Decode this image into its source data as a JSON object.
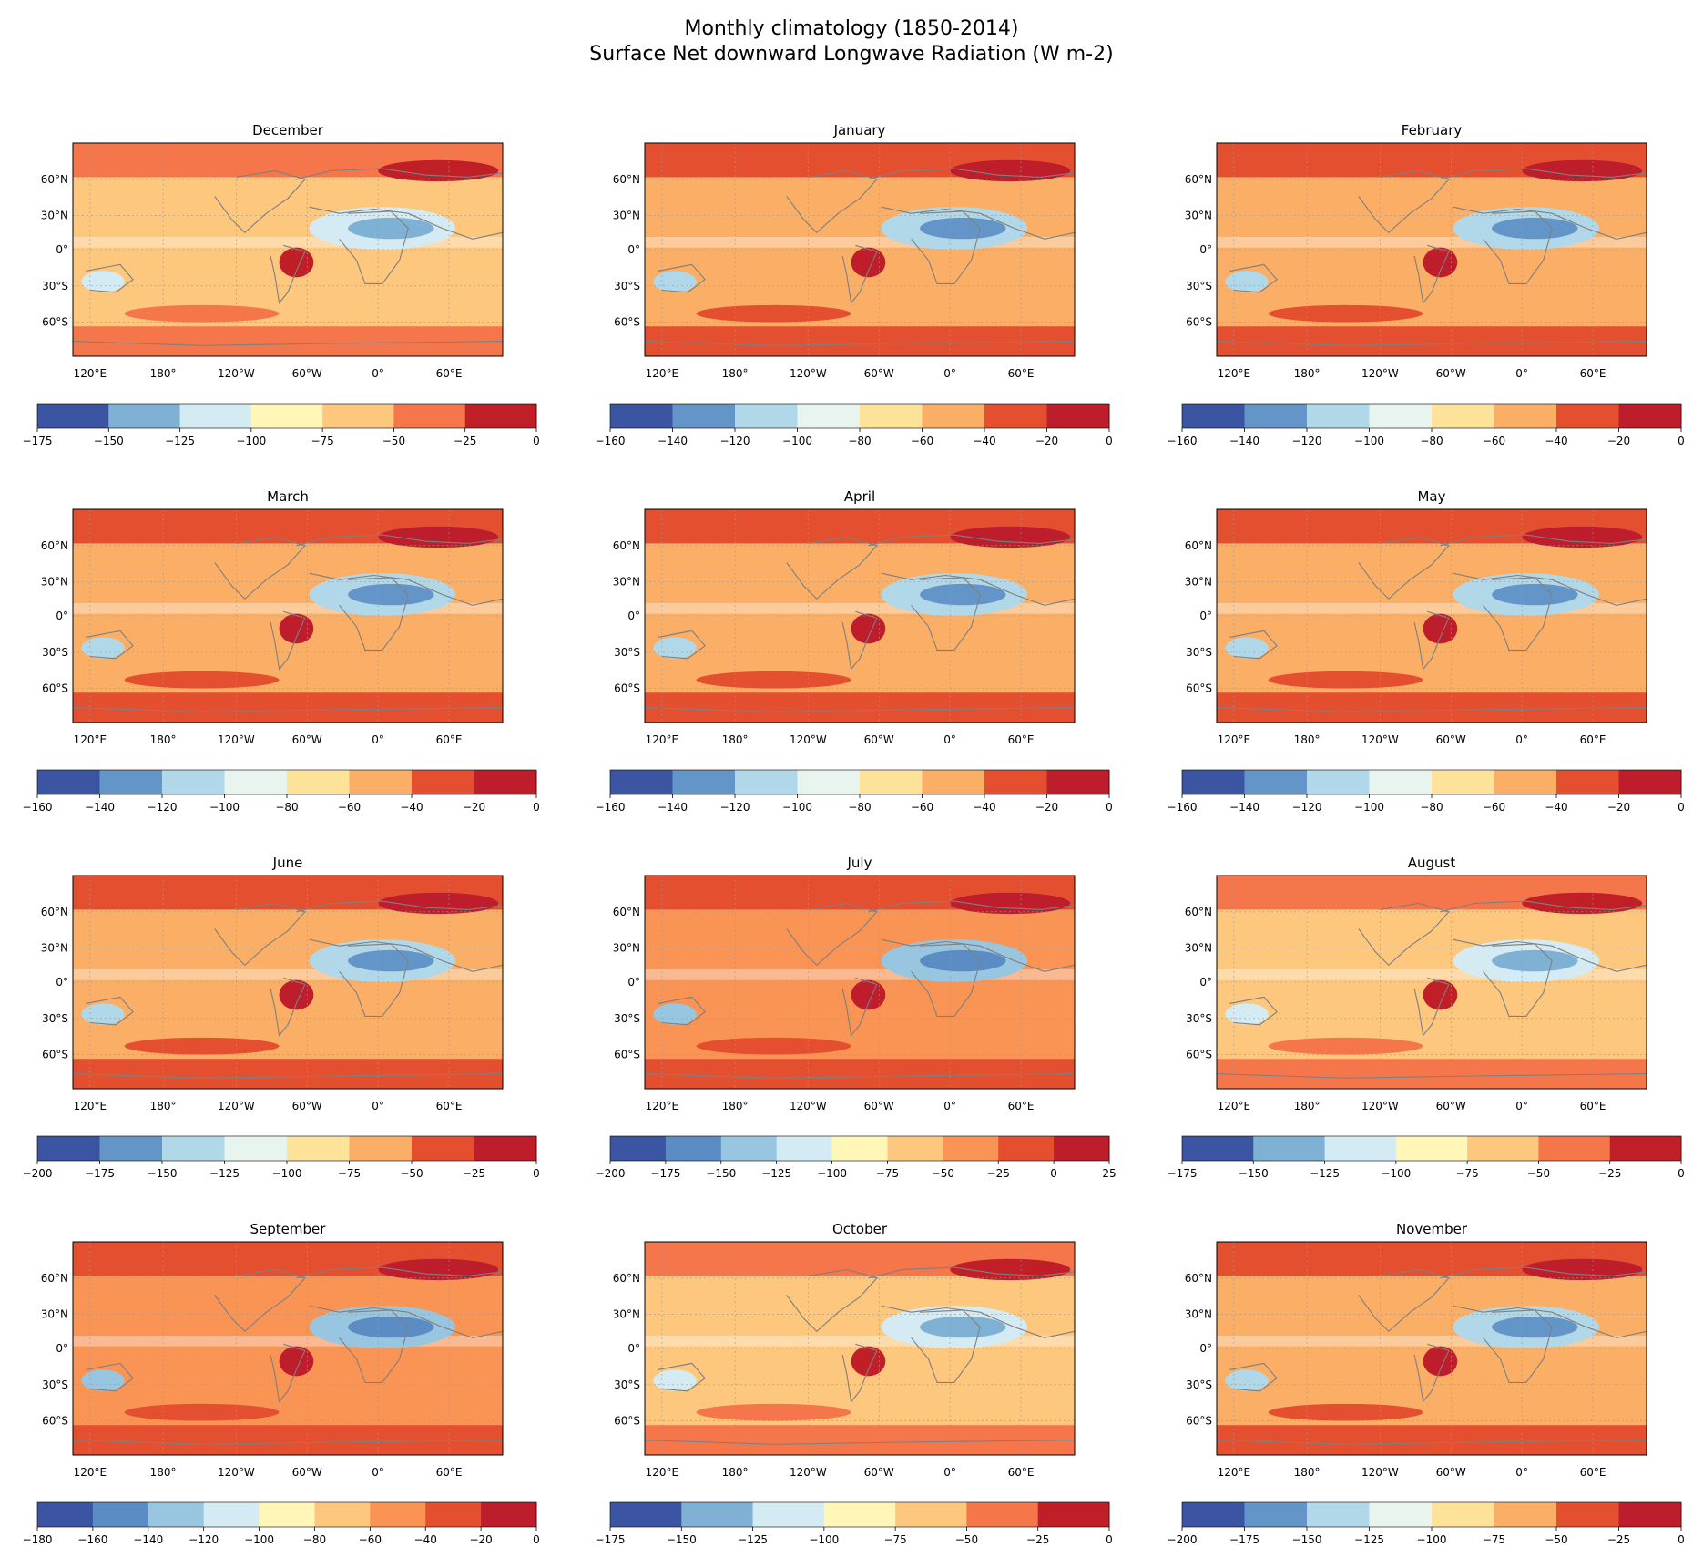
{
  "figure": {
    "title_line1": "Monthly climatology (1850-2014)",
    "title_line2": "Surface Net downward Longwave Radiation (W m-2)"
  },
  "colors": {
    "land_outline": "#7f7f7f",
    "gridline": "#9a9a9a",
    "frame": "#000000"
  },
  "chart_data": [
    {
      "type": "heatmap",
      "title": "December",
      "map": {
        "lat_ticks": [
          "60°N",
          "30°N",
          "0°",
          "30°S",
          "60°S"
        ],
        "lon_ticks": [
          "120°E",
          "180°",
          "120°W",
          "60°W",
          "0°",
          "60°E"
        ]
      },
      "colorbar": {
        "ticks": [
          -175,
          -150,
          -125,
          -100,
          -75,
          -50,
          -25,
          0
        ],
        "levels": [
          -175,
          -150,
          -125,
          -100,
          -75,
          -50,
          -25,
          0
        ],
        "colors": [
          "#3b55a3",
          "#7fb1d5",
          "#d4ebf3",
          "#fff6b8",
          "#fdc77d",
          "#f5764b",
          "#c11f27"
        ]
      }
    },
    {
      "type": "heatmap",
      "title": "January",
      "map": {
        "lat_ticks": [
          "60°N",
          "30°N",
          "0°",
          "30°S",
          "60°S"
        ],
        "lon_ticks": [
          "120°E",
          "180°",
          "120°W",
          "60°W",
          "0°",
          "60°E"
        ]
      },
      "colorbar": {
        "ticks": [
          -160,
          -140,
          -120,
          -100,
          -80,
          -60,
          -40,
          -20,
          0
        ],
        "levels": [
          -160,
          -140,
          -120,
          -100,
          -80,
          -60,
          -40,
          -20,
          0
        ],
        "colors": [
          "#3b55a3",
          "#6495c8",
          "#b1d8e9",
          "#e8f4ee",
          "#fde29a",
          "#fbaf66",
          "#e4502f",
          "#be1d2b"
        ]
      }
    },
    {
      "type": "heatmap",
      "title": "February",
      "map": {
        "lat_ticks": [
          "60°N",
          "30°N",
          "0°",
          "30°S",
          "60°S"
        ],
        "lon_ticks": [
          "120°E",
          "180°",
          "120°W",
          "60°W",
          "0°",
          "60°E"
        ]
      },
      "colorbar": {
        "ticks": [
          -160,
          -140,
          -120,
          -100,
          -80,
          -60,
          -40,
          -20,
          0
        ],
        "levels": [
          -160,
          -140,
          -120,
          -100,
          -80,
          -60,
          -40,
          -20,
          0
        ],
        "colors": [
          "#3b55a3",
          "#6495c8",
          "#b1d8e9",
          "#e8f4ee",
          "#fde29a",
          "#fbaf66",
          "#e4502f",
          "#be1d2b"
        ]
      }
    },
    {
      "type": "heatmap",
      "title": "March",
      "map": {
        "lat_ticks": [
          "60°N",
          "30°N",
          "0°",
          "30°S",
          "60°S"
        ],
        "lon_ticks": [
          "120°E",
          "180°",
          "120°W",
          "60°W",
          "0°",
          "60°E"
        ]
      },
      "colorbar": {
        "ticks": [
          -160,
          -140,
          -120,
          -100,
          -80,
          -60,
          -40,
          -20,
          0
        ],
        "levels": [
          -160,
          -140,
          -120,
          -100,
          -80,
          -60,
          -40,
          -20,
          0
        ],
        "colors": [
          "#3b55a3",
          "#6495c8",
          "#b1d8e9",
          "#e8f4ee",
          "#fde29a",
          "#fbaf66",
          "#e4502f",
          "#be1d2b"
        ]
      }
    },
    {
      "type": "heatmap",
      "title": "April",
      "map": {
        "lat_ticks": [
          "60°N",
          "30°N",
          "0°",
          "30°S",
          "60°S"
        ],
        "lon_ticks": [
          "120°E",
          "180°",
          "120°W",
          "60°W",
          "0°",
          "60°E"
        ]
      },
      "colorbar": {
        "ticks": [
          -160,
          -140,
          -120,
          -100,
          -80,
          -60,
          -40,
          -20,
          0
        ],
        "levels": [
          -160,
          -140,
          -120,
          -100,
          -80,
          -60,
          -40,
          -20,
          0
        ],
        "colors": [
          "#3b55a3",
          "#6495c8",
          "#b1d8e9",
          "#e8f4ee",
          "#fde29a",
          "#fbaf66",
          "#e4502f",
          "#be1d2b"
        ]
      }
    },
    {
      "type": "heatmap",
      "title": "May",
      "map": {
        "lat_ticks": [
          "60°N",
          "30°N",
          "0°",
          "30°S",
          "60°S"
        ],
        "lon_ticks": [
          "120°E",
          "180°",
          "120°W",
          "60°W",
          "0°",
          "60°E"
        ]
      },
      "colorbar": {
        "ticks": [
          -160,
          -140,
          -120,
          -100,
          -80,
          -60,
          -40,
          -20,
          0
        ],
        "levels": [
          -160,
          -140,
          -120,
          -100,
          -80,
          -60,
          -40,
          -20,
          0
        ],
        "colors": [
          "#3b55a3",
          "#6495c8",
          "#b1d8e9",
          "#e8f4ee",
          "#fde29a",
          "#fbaf66",
          "#e4502f",
          "#be1d2b"
        ]
      }
    },
    {
      "type": "heatmap",
      "title": "June",
      "map": {
        "lat_ticks": [
          "60°N",
          "30°N",
          "0°",
          "30°S",
          "60°S"
        ],
        "lon_ticks": [
          "120°E",
          "180°",
          "120°W",
          "60°W",
          "0°",
          "60°E"
        ]
      },
      "colorbar": {
        "ticks": [
          -200,
          -175,
          -150,
          -125,
          -100,
          -75,
          -50,
          -25,
          0
        ],
        "levels": [
          -200,
          -175,
          -150,
          -125,
          -100,
          -75,
          -50,
          -25,
          0
        ],
        "colors": [
          "#3b55a3",
          "#6495c8",
          "#b1d8e9",
          "#e8f4ee",
          "#fde29a",
          "#fbaf66",
          "#e4502f",
          "#be1d2b"
        ]
      }
    },
    {
      "type": "heatmap",
      "title": "July",
      "map": {
        "lat_ticks": [
          "60°N",
          "30°N",
          "0°",
          "30°S",
          "60°S"
        ],
        "lon_ticks": [
          "120°E",
          "180°",
          "120°W",
          "60°W",
          "0°",
          "60°E"
        ]
      },
      "colorbar": {
        "ticks": [
          -200,
          -175,
          -150,
          -125,
          -100,
          -75,
          -50,
          -25,
          0,
          25
        ],
        "levels": [
          -200,
          -175,
          -150,
          -125,
          -100,
          -75,
          -50,
          -25,
          0,
          25
        ],
        "colors": [
          "#3b55a3",
          "#5b8cc3",
          "#98c6e0",
          "#d4ebf3",
          "#fff6b8",
          "#fdc77d",
          "#f99455",
          "#e4502f",
          "#be1d2b"
        ]
      }
    },
    {
      "type": "heatmap",
      "title": "August",
      "map": {
        "lat_ticks": [
          "60°N",
          "30°N",
          "0°",
          "30°S",
          "60°S"
        ],
        "lon_ticks": [
          "120°E",
          "180°",
          "120°W",
          "60°W",
          "0°",
          "60°E"
        ]
      },
      "colorbar": {
        "ticks": [
          -175,
          -150,
          -125,
          -100,
          -75,
          -50,
          -25,
          0
        ],
        "levels": [
          -175,
          -150,
          -125,
          -100,
          -75,
          -50,
          -25,
          0
        ],
        "colors": [
          "#3b55a3",
          "#7fb1d5",
          "#d4ebf3",
          "#fff6b8",
          "#fdc77d",
          "#f5764b",
          "#c11f27"
        ]
      }
    },
    {
      "type": "heatmap",
      "title": "September",
      "map": {
        "lat_ticks": [
          "60°N",
          "30°N",
          "0°",
          "30°S",
          "60°S"
        ],
        "lon_ticks": [
          "120°E",
          "180°",
          "120°W",
          "60°W",
          "0°",
          "60°E"
        ]
      },
      "colorbar": {
        "ticks": [
          -180,
          -160,
          -140,
          -120,
          -100,
          -80,
          -60,
          -40,
          -20,
          0
        ],
        "levels": [
          -180,
          -160,
          -140,
          -120,
          -100,
          -80,
          -60,
          -40,
          -20,
          0
        ],
        "colors": [
          "#3b55a3",
          "#5b8cc3",
          "#98c6e0",
          "#d4ebf3",
          "#fff6b8",
          "#fdc77d",
          "#f99455",
          "#e4502f",
          "#be1d2b"
        ]
      }
    },
    {
      "type": "heatmap",
      "title": "October",
      "map": {
        "lat_ticks": [
          "60°N",
          "30°N",
          "0°",
          "30°S",
          "60°S"
        ],
        "lon_ticks": [
          "120°E",
          "180°",
          "120°W",
          "60°W",
          "0°",
          "60°E"
        ]
      },
      "colorbar": {
        "ticks": [
          -175,
          -150,
          -125,
          -100,
          -75,
          -50,
          -25,
          0
        ],
        "levels": [
          -175,
          -150,
          -125,
          -100,
          -75,
          -50,
          -25,
          0
        ],
        "colors": [
          "#3b55a3",
          "#7fb1d5",
          "#d4ebf3",
          "#fff6b8",
          "#fdc77d",
          "#f5764b",
          "#c11f27"
        ]
      }
    },
    {
      "type": "heatmap",
      "title": "November",
      "map": {
        "lat_ticks": [
          "60°N",
          "30°N",
          "0°",
          "30°S",
          "60°S"
        ],
        "lon_ticks": [
          "120°E",
          "180°",
          "120°W",
          "60°W",
          "0°",
          "60°E"
        ]
      },
      "colorbar": {
        "ticks": [
          -200,
          -175,
          -150,
          -125,
          -100,
          -75,
          -50,
          -25,
          0
        ],
        "levels": [
          -200,
          -175,
          -150,
          -125,
          -100,
          -75,
          -50,
          -25,
          0
        ],
        "colors": [
          "#3b55a3",
          "#6495c8",
          "#b1d8e9",
          "#e8f4ee",
          "#fde29a",
          "#fbaf66",
          "#e4502f",
          "#be1d2b"
        ]
      }
    }
  ]
}
